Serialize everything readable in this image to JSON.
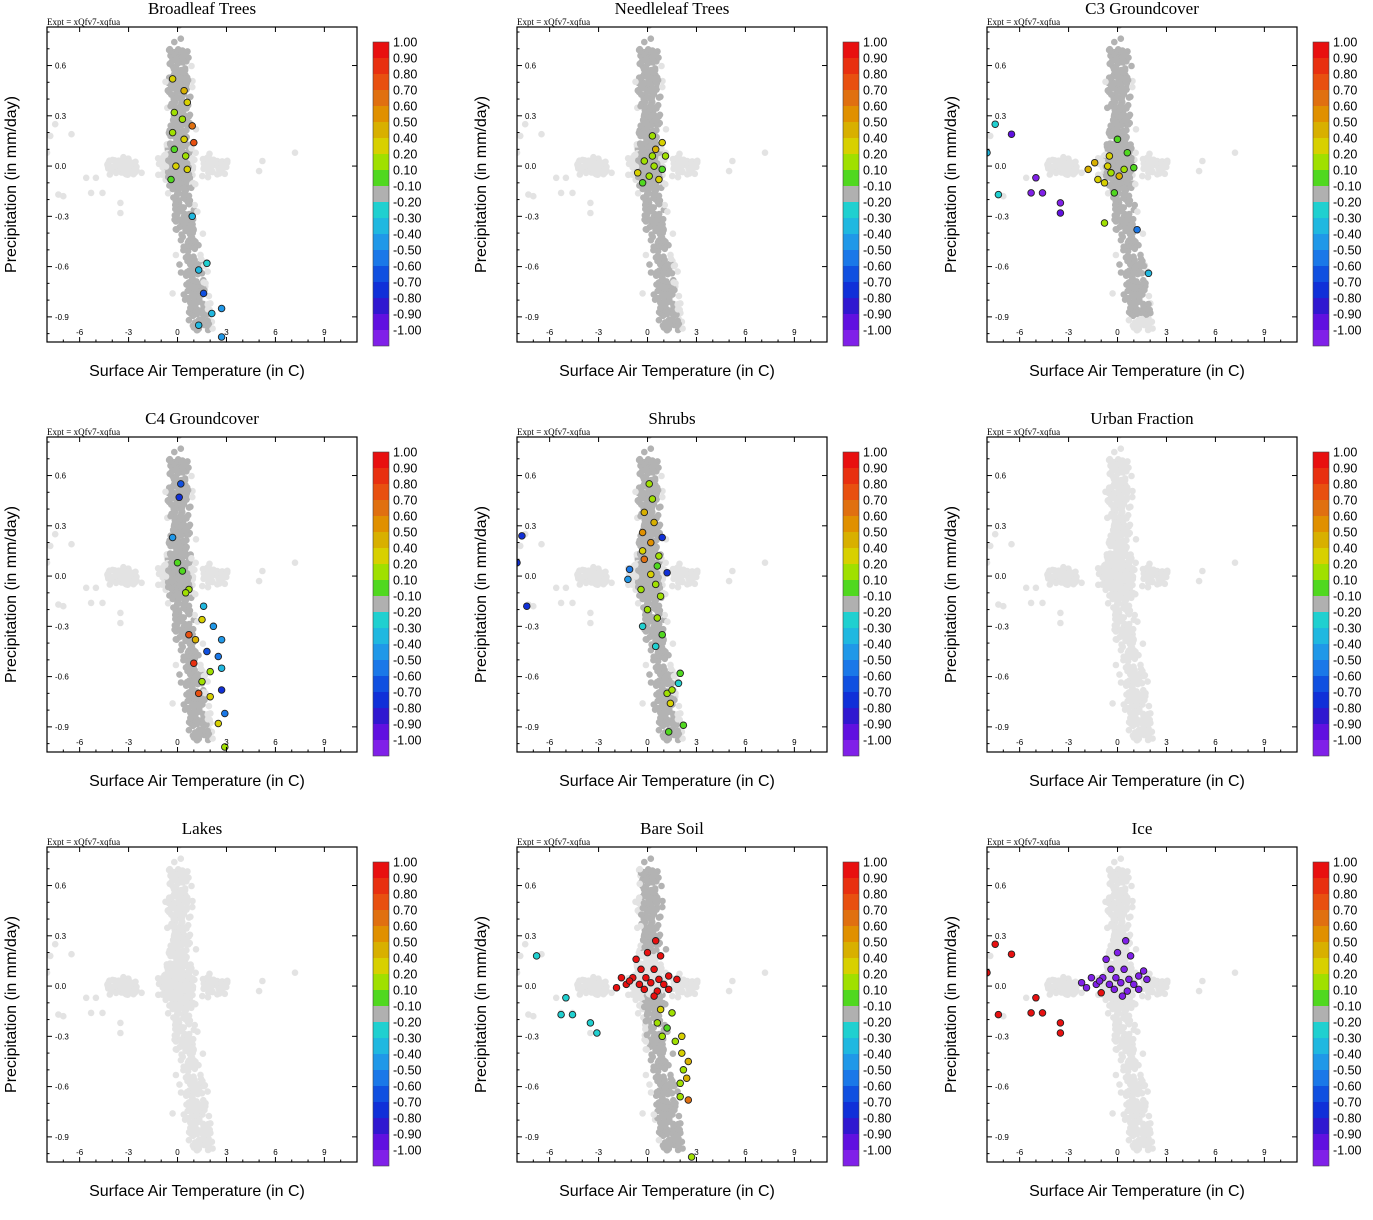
{
  "figure": {
    "expt_label": "Expt = xQfv7-xqfua",
    "colorbar": {
      "labels": [
        "1.00",
        "0.90",
        "0.80",
        "0.70",
        "0.60",
        "0.50",
        "0.40",
        "0.20",
        "0.10",
        "-0.10",
        "-0.20",
        "-0.30",
        "-0.40",
        "-0.50",
        "-0.60",
        "-0.70",
        "-0.80",
        "-0.90",
        "-1.00"
      ],
      "colors": [
        "#e81010",
        "#e83010",
        "#e85010",
        "#e07010",
        "#e09000",
        "#d8b000",
        "#d8d000",
        "#a0e000",
        "#50d820",
        "#b0b0b0",
        "#20d0d0",
        "#20b8e0",
        "#2098e8",
        "#1a78e8",
        "#1050e0",
        "#1030d8",
        "#3018d0",
        "#6010e0",
        "#8020e8"
      ]
    },
    "ticks": {
      "x": [
        "-6",
        "-3",
        "0",
        "3",
        "6",
        "9"
      ],
      "y": [
        "0.6",
        "0.3",
        "0.0",
        "-0.3",
        "-0.6",
        "-0.9"
      ]
    },
    "colors": {
      "grey_light": "#e3e3e3",
      "grey_dark": "#b3b3b3",
      "outline": "#222222"
    }
  },
  "chart_data": [
    {
      "type": "scatter",
      "title": "Broadleaf Trees",
      "xlabel": "Surface Air Temperature (in C)",
      "ylabel": "Precipitation (in mm/day)",
      "xlim": [
        -8,
        11
      ],
      "ylim": [
        -1.05,
        0.83
      ],
      "highlighted": [
        {
          "x": -0.3,
          "y": 0.52,
          "v": 0.4
        },
        {
          "x": 0.4,
          "y": 0.45,
          "v": 0.5
        },
        {
          "x": 0.6,
          "y": 0.38,
          "v": 0.4
        },
        {
          "x": -0.2,
          "y": 0.32,
          "v": 0.2
        },
        {
          "x": 0.3,
          "y": 0.28,
          "v": 0.3
        },
        {
          "x": 0.9,
          "y": 0.24,
          "v": 0.7
        },
        {
          "x": -0.3,
          "y": 0.2,
          "v": 0.2
        },
        {
          "x": 0.4,
          "y": 0.16,
          "v": 0.4
        },
        {
          "x": 1,
          "y": 0.14,
          "v": 0.8
        },
        {
          "x": -0.2,
          "y": 0.1,
          "v": 0.1
        },
        {
          "x": 0.5,
          "y": 0.06,
          "v": 0.2
        },
        {
          "x": -0.1,
          "y": 0,
          "v": 0.4
        },
        {
          "x": 0.6,
          "y": -0.02,
          "v": 0.4
        },
        {
          "x": -0.4,
          "y": -0.08,
          "v": 0.1
        },
        {
          "x": 0.9,
          "y": -0.3,
          "v": -0.3
        },
        {
          "x": 1.8,
          "y": -0.58,
          "v": -0.2
        },
        {
          "x": 1.3,
          "y": -0.62,
          "v": -0.3
        },
        {
          "x": 1.6,
          "y": -0.76,
          "v": -0.6
        },
        {
          "x": 2.1,
          "y": -0.88,
          "v": -0.3
        },
        {
          "x": 2.7,
          "y": -0.85,
          "v": -0.4
        },
        {
          "x": 1.3,
          "y": -0.95,
          "v": -0.3
        },
        {
          "x": 2.7,
          "y": -1.02,
          "v": -0.4
        }
      ]
    },
    {
      "type": "scatter",
      "title": "Needleleaf Trees",
      "xlabel": "Surface Air Temperature (in C)",
      "ylabel": "Precipitation (in mm/day)",
      "xlim": [
        -8,
        11
      ],
      "ylim": [
        -1.05,
        0.83
      ],
      "highlighted": [
        {
          "x": 0.3,
          "y": 0.18,
          "v": 0.3
        },
        {
          "x": 0.9,
          "y": 0.14,
          "v": 0.4
        },
        {
          "x": 0.5,
          "y": 0.1,
          "v": 0.5
        },
        {
          "x": 1.1,
          "y": 0.06,
          "v": 0.3
        },
        {
          "x": -0.2,
          "y": 0.03,
          "v": 0.2
        },
        {
          "x": 0.4,
          "y": 0,
          "v": 0.3
        },
        {
          "x": 0.9,
          "y": -0.02,
          "v": 0.1
        },
        {
          "x": -0.6,
          "y": -0.04,
          "v": 0.4
        },
        {
          "x": 0.1,
          "y": -0.06,
          "v": 0.2
        },
        {
          "x": 0.7,
          "y": -0.08,
          "v": 0.4
        },
        {
          "x": -0.3,
          "y": -0.1,
          "v": 0.1
        },
        {
          "x": 0.3,
          "y": 0.06,
          "v": 0.2
        }
      ]
    },
    {
      "type": "scatter",
      "title": "C3 Groundcover",
      "xlabel": "Surface Air Temperature (in C)",
      "ylabel": "Precipitation (in mm/day)",
      "xlim": [
        -8,
        11
      ],
      "ylim": [
        -1.05,
        0.83
      ],
      "highlighted": [
        {
          "x": -7.5,
          "y": 0.25,
          "v": -0.2
        },
        {
          "x": -6.5,
          "y": 0.19,
          "v": -0.9
        },
        {
          "x": -8,
          "y": 0.08,
          "v": -0.3
        },
        {
          "x": -7.3,
          "y": -0.17,
          "v": -0.2
        },
        {
          "x": -5,
          "y": -0.07,
          "v": -1
        },
        {
          "x": -5.3,
          "y": -0.16,
          "v": -1
        },
        {
          "x": -4.6,
          "y": -0.16,
          "v": -1
        },
        {
          "x": -3.5,
          "y": -0.22,
          "v": -1
        },
        {
          "x": -3.5,
          "y": -0.28,
          "v": -0.9
        },
        {
          "x": 0,
          "y": 0.16,
          "v": 0.1
        },
        {
          "x": 0.6,
          "y": 0.08,
          "v": 0.1
        },
        {
          "x": -0.5,
          "y": 0.06,
          "v": 0.4
        },
        {
          "x": -1.4,
          "y": 0.02,
          "v": 0.5
        },
        {
          "x": -0.6,
          "y": 0,
          "v": 0.4
        },
        {
          "x": -1.8,
          "y": -0.02,
          "v": 0.5
        },
        {
          "x": -0.4,
          "y": -0.04,
          "v": 0.3
        },
        {
          "x": 0.1,
          "y": -0.06,
          "v": 0.5
        },
        {
          "x": -1.2,
          "y": -0.08,
          "v": 0.4
        },
        {
          "x": -0.8,
          "y": -0.1,
          "v": 0.4
        },
        {
          "x": 0.4,
          "y": -0.02,
          "v": 0.2
        },
        {
          "x": -0.2,
          "y": -0.16,
          "v": 0.1
        },
        {
          "x": -0.8,
          "y": -0.34,
          "v": 0.3
        },
        {
          "x": 1.2,
          "y": -0.38,
          "v": -0.5
        },
        {
          "x": 1.9,
          "y": -0.64,
          "v": -0.3
        },
        {
          "x": 1,
          "y": -0.01,
          "v": 0.1
        }
      ]
    },
    {
      "type": "scatter",
      "title": "C4 Groundcover",
      "xlabel": "Surface Air Temperature (in C)",
      "ylabel": "Precipitation (in mm/day)",
      "xlim": [
        -8,
        11
      ],
      "ylim": [
        -1.05,
        0.83
      ],
      "highlighted": [
        {
          "x": 0.2,
          "y": 0.55,
          "v": -0.6
        },
        {
          "x": 0.1,
          "y": 0.47,
          "v": -0.7
        },
        {
          "x": -0.3,
          "y": 0.23,
          "v": -0.4
        },
        {
          "x": 0,
          "y": 0.08,
          "v": 0.1
        },
        {
          "x": 0.3,
          "y": 0.03,
          "v": 0.1
        },
        {
          "x": 0.7,
          "y": -0.08,
          "v": 0.3
        },
        {
          "x": 0.5,
          "y": -0.1,
          "v": 0.2
        },
        {
          "x": 1.6,
          "y": -0.18,
          "v": -0.3
        },
        {
          "x": 1.5,
          "y": -0.26,
          "v": 0.4
        },
        {
          "x": 2.2,
          "y": -0.3,
          "v": -0.4
        },
        {
          "x": 0.7,
          "y": -0.35,
          "v": 0.8
        },
        {
          "x": 1.1,
          "y": -0.38,
          "v": 0.5
        },
        {
          "x": 2.7,
          "y": -0.38,
          "v": -0.4
        },
        {
          "x": 1.8,
          "y": -0.45,
          "v": -0.6
        },
        {
          "x": 2.5,
          "y": -0.48,
          "v": -0.5
        },
        {
          "x": 1,
          "y": -0.52,
          "v": 0.9
        },
        {
          "x": 2.7,
          "y": -0.55,
          "v": -0.3
        },
        {
          "x": 2,
          "y": -0.57,
          "v": 0.3
        },
        {
          "x": 1.5,
          "y": -0.63,
          "v": 0.2
        },
        {
          "x": 2.7,
          "y": -0.68,
          "v": -0.7
        },
        {
          "x": 1.3,
          "y": -0.7,
          "v": 0.8
        },
        {
          "x": 2,
          "y": -0.72,
          "v": 0.4
        },
        {
          "x": 2.9,
          "y": -0.82,
          "v": -0.5
        },
        {
          "x": 2.5,
          "y": -0.88,
          "v": 0.4
        },
        {
          "x": 2.9,
          "y": -1.02,
          "v": 0.2
        }
      ]
    },
    {
      "type": "scatter",
      "title": "Shrubs",
      "xlabel": "Surface Air Temperature (in C)",
      "ylabel": "Precipitation (in mm/day)",
      "xlim": [
        -8,
        11
      ],
      "ylim": [
        -1.05,
        0.83
      ],
      "highlighted": [
        {
          "x": -7.7,
          "y": 0.24,
          "v": -0.7
        },
        {
          "x": -8,
          "y": 0.08,
          "v": -0.7
        },
        {
          "x": -7.4,
          "y": -0.18,
          "v": -0.7
        },
        {
          "x": 0.1,
          "y": 0.55,
          "v": 0.2
        },
        {
          "x": 0.3,
          "y": 0.46,
          "v": 0.2
        },
        {
          "x": -0.2,
          "y": 0.38,
          "v": 0.5
        },
        {
          "x": 0.4,
          "y": 0.32,
          "v": 0.5
        },
        {
          "x": -0.3,
          "y": 0.26,
          "v": 0.6
        },
        {
          "x": 0.9,
          "y": 0.23,
          "v": -0.7
        },
        {
          "x": 0.2,
          "y": 0.2,
          "v": 0.6
        },
        {
          "x": -0.3,
          "y": 0.15,
          "v": 0.4
        },
        {
          "x": 0.7,
          "y": 0.12,
          "v": 0.3
        },
        {
          "x": -0.2,
          "y": 0.1,
          "v": 0.7
        },
        {
          "x": 0.6,
          "y": 0.06,
          "v": 0.1
        },
        {
          "x": -1.1,
          "y": 0.04,
          "v": -0.5
        },
        {
          "x": 1.2,
          "y": 0.02,
          "v": -0.7
        },
        {
          "x": 0.2,
          "y": 0.01,
          "v": 0.4
        },
        {
          "x": -1.2,
          "y": -0.02,
          "v": -0.4
        },
        {
          "x": 0.5,
          "y": -0.05,
          "v": 0.3
        },
        {
          "x": -0.4,
          "y": -0.08,
          "v": 0.2
        },
        {
          "x": 0.8,
          "y": -0.12,
          "v": 0.3
        },
        {
          "x": 0,
          "y": -0.2,
          "v": 0.2
        },
        {
          "x": 0.6,
          "y": -0.25,
          "v": 0.3
        },
        {
          "x": -0.3,
          "y": -0.3,
          "v": -0.2
        },
        {
          "x": 0.9,
          "y": -0.35,
          "v": 0.1
        },
        {
          "x": 0.5,
          "y": -0.42,
          "v": -0.2
        },
        {
          "x": 2,
          "y": -0.58,
          "v": 0.1
        },
        {
          "x": 1.9,
          "y": -0.64,
          "v": -0.2
        },
        {
          "x": 1.2,
          "y": -0.7,
          "v": 0.2
        },
        {
          "x": 1.5,
          "y": -0.68,
          "v": 0.2
        },
        {
          "x": 1.4,
          "y": -0.76,
          "v": 0.4
        },
        {
          "x": 2.2,
          "y": -0.89,
          "v": 0.1
        },
        {
          "x": 1.3,
          "y": -0.93,
          "v": 0.1
        }
      ]
    },
    {
      "type": "scatter",
      "title": "Urban Fraction",
      "xlabel": "Surface Air Temperature (in C)",
      "ylabel": "Precipitation (in mm/day)",
      "xlim": [
        -8,
        11
      ],
      "ylim": [
        -1.05,
        0.83
      ],
      "highlighted": []
    },
    {
      "type": "scatter",
      "title": "Lakes",
      "xlabel": "Surface Air Temperature (in C)",
      "ylabel": "Precipitation (in mm/day)",
      "xlim": [
        -8,
        11
      ],
      "ylim": [
        -1.05,
        0.83
      ],
      "highlighted": []
    },
    {
      "type": "scatter",
      "title": "Bare Soil",
      "xlabel": "Surface Air Temperature (in C)",
      "ylabel": "Precipitation (in mm/day)",
      "xlim": [
        -8,
        11
      ],
      "ylim": [
        -1.05,
        0.83
      ],
      "highlighted": [
        {
          "x": -6.8,
          "y": 0.18,
          "v": -0.2
        },
        {
          "x": -5,
          "y": -0.07,
          "v": -0.2
        },
        {
          "x": -5.3,
          "y": -0.17,
          "v": -0.2
        },
        {
          "x": -4.6,
          "y": -0.17,
          "v": -0.2
        },
        {
          "x": -3.5,
          "y": -0.22,
          "v": -0.2
        },
        {
          "x": -3.1,
          "y": -0.28,
          "v": -0.2
        },
        {
          "x": 0.5,
          "y": 0.27,
          "v": 1
        },
        {
          "x": 0,
          "y": 0.2,
          "v": 1
        },
        {
          "x": 0.8,
          "y": 0.18,
          "v": 1
        },
        {
          "x": -0.7,
          "y": 0.16,
          "v": 1
        },
        {
          "x": -0.4,
          "y": 0.1,
          "v": 1
        },
        {
          "x": 0.4,
          "y": 0.1,
          "v": 1
        },
        {
          "x": 1.3,
          "y": 0.06,
          "v": 1
        },
        {
          "x": -1.6,
          "y": 0.05,
          "v": 1
        },
        {
          "x": -0.9,
          "y": 0.05,
          "v": 1
        },
        {
          "x": -0.1,
          "y": 0.05,
          "v": 1
        },
        {
          "x": 0.7,
          "y": 0.04,
          "v": 1
        },
        {
          "x": 1.8,
          "y": 0.04,
          "v": 1
        },
        {
          "x": -1.3,
          "y": 0.01,
          "v": 1
        },
        {
          "x": -0.5,
          "y": 0.01,
          "v": 1
        },
        {
          "x": 0.2,
          "y": 0.02,
          "v": 1
        },
        {
          "x": 1,
          "y": 0.01,
          "v": 1
        },
        {
          "x": -1.9,
          "y": -0.01,
          "v": 1
        },
        {
          "x": -0.2,
          "y": -0.02,
          "v": 1
        },
        {
          "x": 0.6,
          "y": -0.03,
          "v": 1
        },
        {
          "x": 1.3,
          "y": -0.02,
          "v": 1
        },
        {
          "x": -1.1,
          "y": 0.03,
          "v": 1
        },
        {
          "x": 0.4,
          "y": -0.06,
          "v": 1
        },
        {
          "x": 0.8,
          "y": -0.14,
          "v": 0.4
        },
        {
          "x": 1.5,
          "y": -0.16,
          "v": 0.2
        },
        {
          "x": 0.6,
          "y": -0.22,
          "v": 0.2
        },
        {
          "x": 1.2,
          "y": -0.25,
          "v": 0.1
        },
        {
          "x": 2.1,
          "y": -0.3,
          "v": 0.4
        },
        {
          "x": 0.9,
          "y": -0.3,
          "v": 0.2
        },
        {
          "x": 1.7,
          "y": -0.33,
          "v": 0.3
        },
        {
          "x": 2.1,
          "y": -0.4,
          "v": 0.4
        },
        {
          "x": 2.5,
          "y": -0.45,
          "v": 0.5
        },
        {
          "x": 2.2,
          "y": -0.5,
          "v": 0.3
        },
        {
          "x": 2.4,
          "y": -0.55,
          "v": 0.5
        },
        {
          "x": 2,
          "y": -0.58,
          "v": 0.3
        },
        {
          "x": 2.5,
          "y": -0.68,
          "v": 0.7
        },
        {
          "x": 2,
          "y": -0.66,
          "v": 0.3
        },
        {
          "x": 2.7,
          "y": -1.02,
          "v": 0.2
        }
      ]
    },
    {
      "type": "scatter",
      "title": "Ice",
      "xlabel": "Surface Air Temperature (in C)",
      "ylabel": "Precipitation (in mm/day)",
      "xlim": [
        -8,
        11
      ],
      "ylim": [
        -1.05,
        0.83
      ],
      "highlighted": [
        {
          "x": -7.5,
          "y": 0.25,
          "v": 1
        },
        {
          "x": -6.5,
          "y": 0.19,
          "v": 1
        },
        {
          "x": -8,
          "y": 0.08,
          "v": 1
        },
        {
          "x": -7.3,
          "y": -0.17,
          "v": 1
        },
        {
          "x": -5,
          "y": -0.07,
          "v": 1
        },
        {
          "x": -5.3,
          "y": -0.16,
          "v": 1
        },
        {
          "x": -4.6,
          "y": -0.16,
          "v": 1
        },
        {
          "x": -3.5,
          "y": -0.22,
          "v": 1
        },
        {
          "x": -3.5,
          "y": -0.28,
          "v": 1
        },
        {
          "x": -1,
          "y": -0.04,
          "v": 1
        },
        {
          "x": 0.5,
          "y": 0.27,
          "v": -1
        },
        {
          "x": 0,
          "y": 0.2,
          "v": -1
        },
        {
          "x": 0.8,
          "y": 0.18,
          "v": -1
        },
        {
          "x": -0.7,
          "y": 0.16,
          "v": -1
        },
        {
          "x": -0.4,
          "y": 0.1,
          "v": -1
        },
        {
          "x": 0.4,
          "y": 0.1,
          "v": -1
        },
        {
          "x": 1.3,
          "y": 0.06,
          "v": -1
        },
        {
          "x": -1.6,
          "y": 0.05,
          "v": -1
        },
        {
          "x": -0.9,
          "y": 0.05,
          "v": -1
        },
        {
          "x": -0.1,
          "y": 0.05,
          "v": -1
        },
        {
          "x": 0.7,
          "y": 0.04,
          "v": -1
        },
        {
          "x": 1.8,
          "y": 0.04,
          "v": -1
        },
        {
          "x": -1.3,
          "y": 0.01,
          "v": -1
        },
        {
          "x": -0.5,
          "y": 0.01,
          "v": -1
        },
        {
          "x": 0.2,
          "y": 0.02,
          "v": -1
        },
        {
          "x": 1,
          "y": 0.01,
          "v": -1
        },
        {
          "x": -1.9,
          "y": -0.01,
          "v": -1
        },
        {
          "x": -0.2,
          "y": -0.02,
          "v": -1
        },
        {
          "x": 0.6,
          "y": -0.03,
          "v": -1
        },
        {
          "x": 1.3,
          "y": -0.02,
          "v": -1
        },
        {
          "x": -1.1,
          "y": 0.03,
          "v": -1
        },
        {
          "x": 0.3,
          "y": -0.06,
          "v": -1
        },
        {
          "x": -2.2,
          "y": 0.02,
          "v": -1
        },
        {
          "x": 1.6,
          "y": 0.09,
          "v": -1
        }
      ]
    }
  ]
}
